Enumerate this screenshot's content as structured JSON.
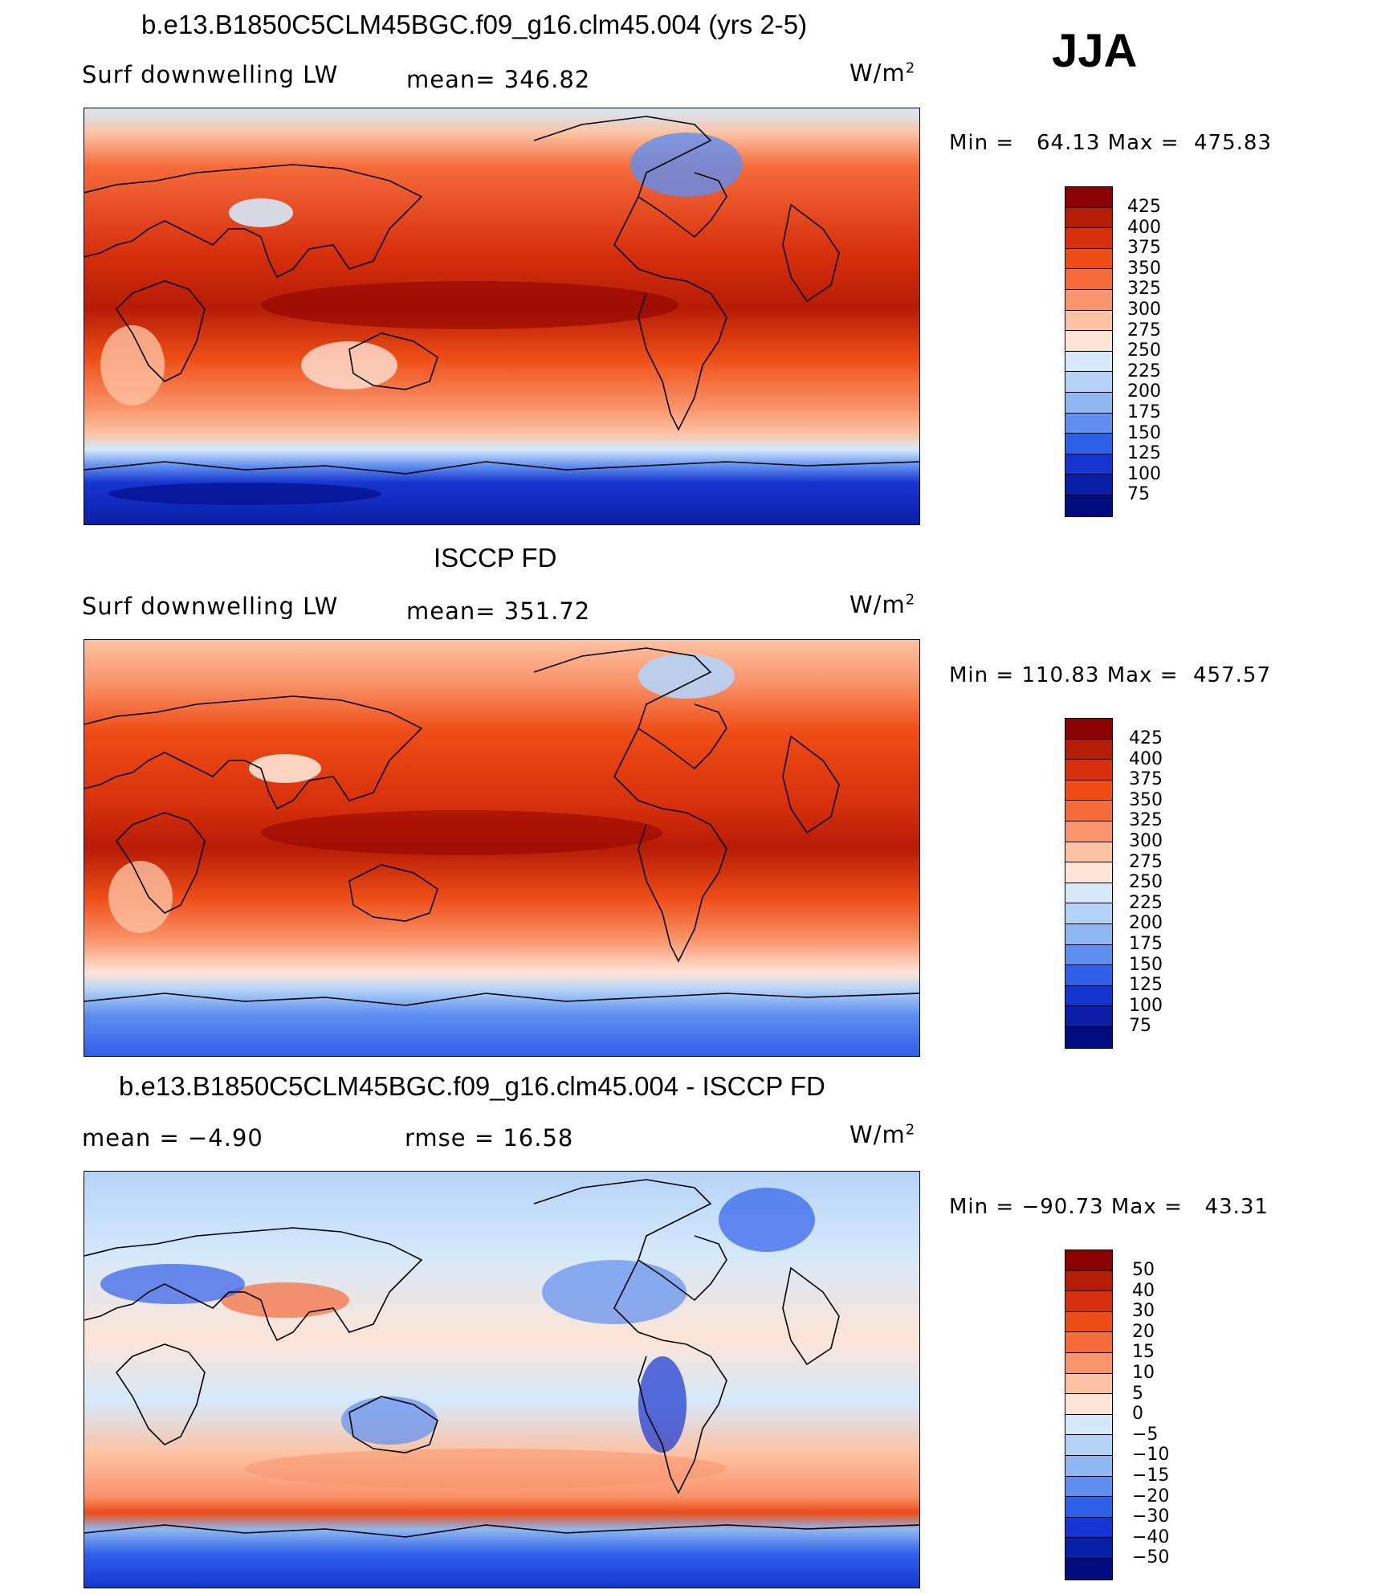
{
  "season": "JJA",
  "panels": [
    {
      "title": "b.e13.B1850C5CLM45BGC.f09_g16.clm45.004 (yrs 2-5)",
      "variable": "Surf downwelling LW",
      "stat": "mean=  346.82",
      "units": "W/m",
      "units_sup": "2",
      "minmax": "Min =   64.13 Max =  475.83",
      "levels": [
        "425",
        "400",
        "375",
        "350",
        "325",
        "300",
        "275",
        "250",
        "225",
        "200",
        "175",
        "150",
        "125",
        "100",
        "75"
      ],
      "colors": [
        "#8b0000",
        "#b51c06",
        "#d62f0c",
        "#ee4d16",
        "#f56b3a",
        "#f9946b",
        "#fcc2a2",
        "#fde4d6",
        "#d5e9fb",
        "#b5d3f7",
        "#8fb7f2",
        "#5f8ff0",
        "#2f60ea",
        "#1735d0",
        "#0a1fa8",
        "#000c80"
      ]
    },
    {
      "title": "ISCCP FD",
      "variable": "Surf downwelling LW",
      "stat": "mean=  351.72",
      "units": "W/m",
      "units_sup": "2",
      "minmax": "Min = 110.83 Max =  457.57",
      "levels": [
        "425",
        "400",
        "375",
        "350",
        "325",
        "300",
        "275",
        "250",
        "225",
        "200",
        "175",
        "150",
        "125",
        "100",
        "75"
      ],
      "colors": [
        "#8b0000",
        "#b51c06",
        "#d62f0c",
        "#ee4d16",
        "#f56b3a",
        "#f9946b",
        "#fcc2a2",
        "#fde4d6",
        "#d5e9fb",
        "#b5d3f7",
        "#8fb7f2",
        "#5f8ff0",
        "#2f60ea",
        "#1735d0",
        "#0a1fa8",
        "#000c80"
      ]
    },
    {
      "title": "b.e13.B1850C5CLM45BGC.f09_g16.clm45.004 - ISCCP FD",
      "stat_mean": "mean =   −4.90",
      "stat_rmse": "rmse =   16.58",
      "units": "W/m",
      "units_sup": "2",
      "minmax": "Min = −90.73 Max =   43.31",
      "levels": [
        "50",
        "40",
        "30",
        "20",
        "15",
        "10",
        "5",
        "0",
        "−5",
        "−10",
        "−15",
        "−20",
        "−30",
        "−40",
        "−50"
      ],
      "colors": [
        "#8b0000",
        "#b51c06",
        "#d62f0c",
        "#ee4d16",
        "#f56b3a",
        "#f9946b",
        "#fcc2a2",
        "#fde4d6",
        "#d5e9fb",
        "#b5d3f7",
        "#8fb7f2",
        "#5f8ff0",
        "#2f60ea",
        "#1735d0",
        "#0a1fa8",
        "#000c80"
      ]
    }
  ]
}
